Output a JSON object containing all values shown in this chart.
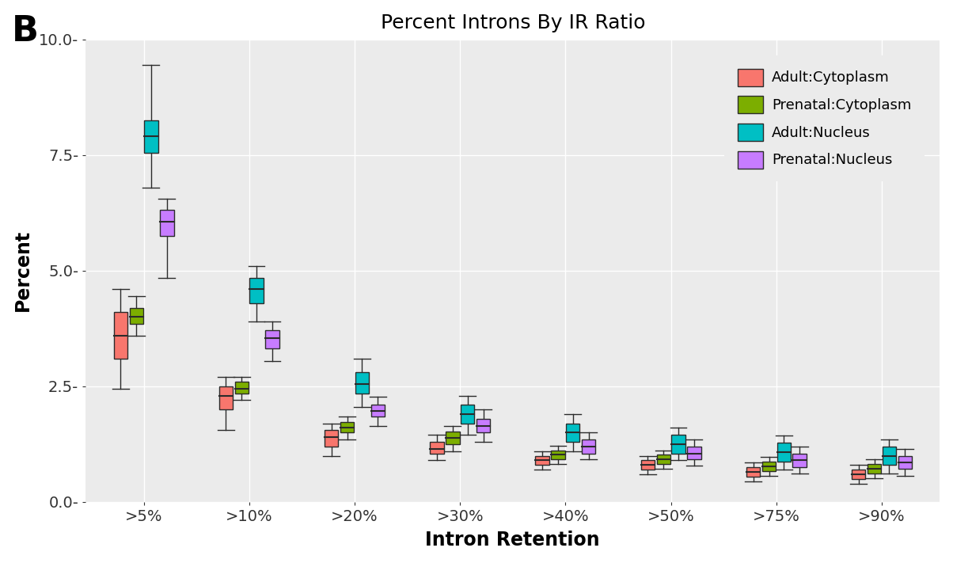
{
  "title": "Percent Introns By IR Ratio",
  "xlabel": "Intron Retention",
  "ylabel": "Percent",
  "panel_label": "B",
  "bg_color": "#EBEBEB",
  "grid_color": "#FFFFFF",
  "ylim": [
    0.0,
    10.0
  ],
  "yticks": [
    0.0,
    2.5,
    5.0,
    7.5,
    10.0
  ],
  "ytick_labels": [
    "0.0-",
    "2.5-",
    "5.0-",
    "7.5-",
    "10.0-"
  ],
  "categories": [
    ">5%",
    ">10%",
    ">20%",
    ">30%",
    ">40%",
    ">50%",
    ">75%",
    ">90%"
  ],
  "series": {
    "Adult:Cytoplasm": {
      "color": "#F8766D",
      "boxes": [
        {
          "whislo": 2.45,
          "q1": 3.1,
          "med": 3.6,
          "q3": 4.1,
          "whishi": 4.6
        },
        {
          "whislo": 1.55,
          "q1": 2.0,
          "med": 2.3,
          "q3": 2.5,
          "whishi": 2.7
        },
        {
          "whislo": 1.0,
          "q1": 1.2,
          "med": 1.4,
          "q3": 1.55,
          "whishi": 1.7
        },
        {
          "whislo": 0.9,
          "q1": 1.05,
          "med": 1.15,
          "q3": 1.3,
          "whishi": 1.45
        },
        {
          "whislo": 0.7,
          "q1": 0.8,
          "med": 0.9,
          "q3": 1.0,
          "whishi": 1.1
        },
        {
          "whislo": 0.6,
          "q1": 0.7,
          "med": 0.8,
          "q3": 0.9,
          "whishi": 1.0
        },
        {
          "whislo": 0.45,
          "q1": 0.55,
          "med": 0.65,
          "q3": 0.75,
          "whishi": 0.85
        },
        {
          "whislo": 0.4,
          "q1": 0.5,
          "med": 0.6,
          "q3": 0.7,
          "whishi": 0.8
        }
      ]
    },
    "Prenatal:Cytoplasm": {
      "color": "#7CAE00",
      "boxes": [
        {
          "whislo": 3.6,
          "q1": 3.85,
          "med": 4.0,
          "q3": 4.2,
          "whishi": 4.45
        },
        {
          "whislo": 2.2,
          "q1": 2.35,
          "med": 2.45,
          "q3": 2.6,
          "whishi": 2.7
        },
        {
          "whislo": 1.35,
          "q1": 1.5,
          "med": 1.6,
          "q3": 1.72,
          "whishi": 1.85
        },
        {
          "whislo": 1.1,
          "q1": 1.25,
          "med": 1.38,
          "q3": 1.52,
          "whishi": 1.65
        },
        {
          "whislo": 0.82,
          "q1": 0.92,
          "med": 1.02,
          "q3": 1.12,
          "whishi": 1.22
        },
        {
          "whislo": 0.72,
          "q1": 0.82,
          "med": 0.92,
          "q3": 1.02,
          "whishi": 1.12
        },
        {
          "whislo": 0.57,
          "q1": 0.67,
          "med": 0.77,
          "q3": 0.87,
          "whishi": 0.97
        },
        {
          "whislo": 0.52,
          "q1": 0.62,
          "med": 0.72,
          "q3": 0.82,
          "whishi": 0.92
        }
      ]
    },
    "Adult:Nucleus": {
      "color": "#00BFC4",
      "boxes": [
        {
          "whislo": 6.8,
          "q1": 7.55,
          "med": 7.9,
          "q3": 8.25,
          "whishi": 9.45
        },
        {
          "whislo": 3.9,
          "q1": 4.3,
          "med": 4.6,
          "q3": 4.85,
          "whishi": 5.1
        },
        {
          "whislo": 2.05,
          "q1": 2.35,
          "med": 2.55,
          "q3": 2.8,
          "whishi": 3.1
        },
        {
          "whislo": 1.45,
          "q1": 1.7,
          "med": 1.9,
          "q3": 2.1,
          "whishi": 2.3
        },
        {
          "whislo": 1.1,
          "q1": 1.3,
          "med": 1.5,
          "q3": 1.7,
          "whishi": 1.9
        },
        {
          "whislo": 0.9,
          "q1": 1.05,
          "med": 1.25,
          "q3": 1.45,
          "whishi": 1.6
        },
        {
          "whislo": 0.7,
          "q1": 0.88,
          "med": 1.08,
          "q3": 1.28,
          "whishi": 1.43
        },
        {
          "whislo": 0.62,
          "q1": 0.8,
          "med": 1.0,
          "q3": 1.2,
          "whishi": 1.35
        }
      ]
    },
    "Prenatal:Nucleus": {
      "color": "#C77CFF",
      "boxes": [
        {
          "whislo": 4.85,
          "q1": 5.75,
          "med": 6.05,
          "q3": 6.32,
          "whishi": 6.55
        },
        {
          "whislo": 3.05,
          "q1": 3.32,
          "med": 3.55,
          "q3": 3.72,
          "whishi": 3.9
        },
        {
          "whislo": 1.65,
          "q1": 1.85,
          "med": 1.97,
          "q3": 2.1,
          "whishi": 2.28
        },
        {
          "whislo": 1.3,
          "q1": 1.5,
          "med": 1.65,
          "q3": 1.8,
          "whishi": 2.0
        },
        {
          "whislo": 0.92,
          "q1": 1.05,
          "med": 1.2,
          "q3": 1.35,
          "whishi": 1.5
        },
        {
          "whislo": 0.78,
          "q1": 0.92,
          "med": 1.05,
          "q3": 1.2,
          "whishi": 1.35
        },
        {
          "whislo": 0.62,
          "q1": 0.76,
          "med": 0.9,
          "q3": 1.05,
          "whishi": 1.2
        },
        {
          "whislo": 0.57,
          "q1": 0.71,
          "med": 0.85,
          "q3": 1.0,
          "whishi": 1.15
        }
      ]
    }
  },
  "legend_order": [
    "Adult:Cytoplasm",
    "Prenatal:Cytoplasm",
    "Adult:Nucleus",
    "Prenatal:Nucleus"
  ],
  "box_width": 0.13,
  "offsets": [
    -0.22,
    -0.07,
    0.07,
    0.22
  ]
}
